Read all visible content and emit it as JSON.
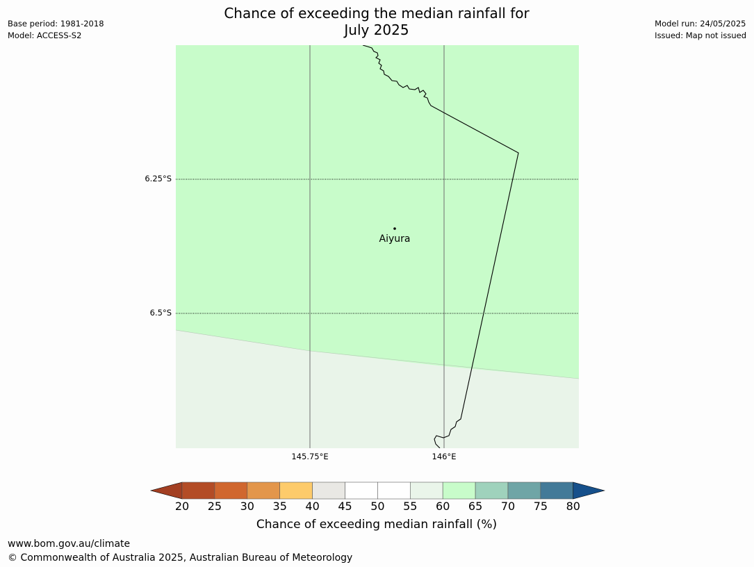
{
  "header": {
    "title_line1": "Chance of exceeding the median rainfall for",
    "title_line2": "July 2025",
    "base_period": "Base period: 1981-2018",
    "model": "Model: ACCESS-S2",
    "model_run": "Model run: 24/05/2025",
    "issued": "Issued: Map not issued"
  },
  "map": {
    "latitude_labels": [
      "6.25°S",
      "6.5°S"
    ],
    "longitude_labels": [
      "145.75°E",
      "146°E"
    ],
    "place": "Aiyura",
    "regions": [
      {
        "category": "60-65",
        "color": "#c8fcca"
      },
      {
        "category": "55-60",
        "color": "#e9f4e9"
      }
    ]
  },
  "colorbar": {
    "ticks": [
      "20",
      "25",
      "30",
      "35",
      "40",
      "45",
      "50",
      "55",
      "60",
      "65",
      "70",
      "75",
      "80"
    ],
    "colors": [
      "#a33f22",
      "#b34c26",
      "#d0672f",
      "#e3964b",
      "#fdcb6b",
      "#e9e8e4",
      "#ffffff",
      "#ffffff",
      "#eaf5ea",
      "#c8fcca",
      "#9fd2bc",
      "#6fa5a6",
      "#437a98",
      "#16508b"
    ],
    "label": "Chance of exceeding median rainfall (%)"
  },
  "footer": {
    "url": "www.bom.gov.au/climate",
    "copyright": "© Commonwealth of Australia 2025, Australian Bureau of Meteorology"
  }
}
